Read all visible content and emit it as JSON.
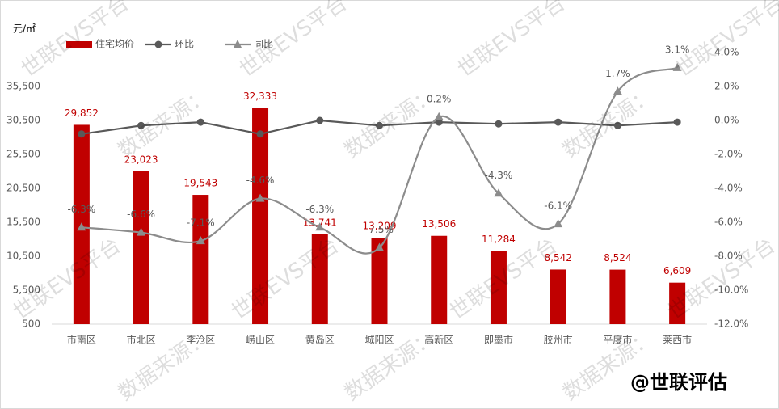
{
  "chart_data": {
    "type": "bar",
    "y_label": "元/㎡",
    "categories": [
      "市南区",
      "市北区",
      "李沧区",
      "崂山区",
      "黄岛区",
      "城阳区",
      "高新区",
      "即墨市",
      "胶州市",
      "平度市",
      "莱西市"
    ],
    "series": [
      {
        "name": "住宅均价",
        "type": "bar",
        "color": "#c00000",
        "values": [
          29852,
          23023,
          19543,
          32333,
          13741,
          13209,
          13506,
          11284,
          8542,
          8524,
          6609
        ],
        "value_labels": [
          "29,852",
          "23,023",
          "19,543",
          "32,333",
          "13,741",
          "13,209",
          "13,506",
          "11,284",
          "8,542",
          "8,524",
          "6,609"
        ]
      },
      {
        "name": "环比",
        "type": "line",
        "axis": "y2",
        "color": "#595959",
        "marker": "circle",
        "values": [
          -0.8,
          -0.3,
          -0.1,
          -0.8,
          0.0,
          -0.3,
          -0.1,
          -0.2,
          -0.1,
          -0.3,
          -0.1
        ]
      },
      {
        "name": "同比",
        "type": "line",
        "axis": "y2",
        "color": "#8c8c8c",
        "marker": "triangle",
        "smooth": true,
        "values": [
          -6.3,
          -6.6,
          -7.1,
          -4.6,
          -6.3,
          -7.5,
          0.2,
          -4.3,
          -6.1,
          1.7,
          3.1
        ],
        "value_labels": [
          "-6.3%",
          "-6.6%",
          "-7.1%",
          "-4.6%",
          "-6.3%",
          "-7.5%",
          "0.2%",
          "-4.3%",
          "-6.1%",
          "1.7%",
          "3.1%"
        ]
      }
    ],
    "ylim": [
      500,
      40500
    ],
    "yticks": [
      500,
      {
        "value": 5500,
        "label": "5,500"
      },
      {
        "value": 10500,
        "label": "10,500"
      },
      {
        "value": 15500,
        "label": "15,500"
      },
      {
        "value": 20500,
        "label": "20,500"
      },
      {
        "value": 25500,
        "label": "25,500"
      },
      {
        "value": 30500,
        "label": "30,500"
      },
      {
        "value": 35500,
        "label": "35,500"
      }
    ],
    "y2lim": [
      -12,
      4
    ],
    "y2ticks": [
      {
        "value": -12,
        "label": "-12.0%"
      },
      {
        "value": -10,
        "label": "-10.0%"
      },
      {
        "value": -8,
        "label": "-8.0%"
      },
      {
        "value": -6,
        "label": "-6.0%"
      },
      {
        "value": -4,
        "label": "-4.0%"
      },
      {
        "value": -2,
        "label": "-2.0%"
      },
      {
        "value": 0,
        "label": "0.0%"
      },
      {
        "value": 2,
        "label": "2.0%"
      },
      {
        "value": 4,
        "label": "4.0%"
      }
    ],
    "watermarks": [
      "世联EVS平台",
      "数据来源："
    ],
    "credit": "@世联评估"
  }
}
